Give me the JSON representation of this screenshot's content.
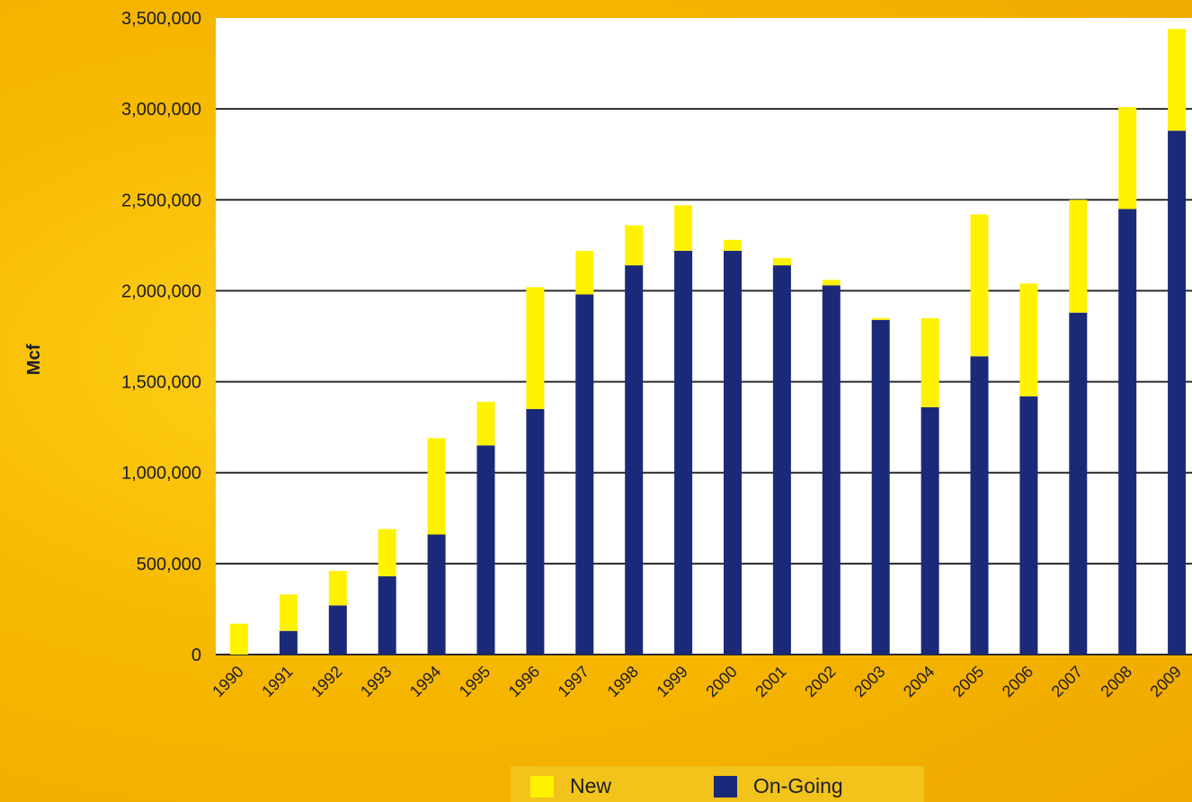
{
  "chart_data": {
    "type": "bar",
    "stacked": true,
    "ylabel": "Mcf",
    "xlabel": "",
    "ylim": [
      0,
      3500000
    ],
    "yticks": [
      0,
      500000,
      1000000,
      1500000,
      2000000,
      2500000,
      3000000,
      3500000
    ],
    "ytick_labels": [
      "0",
      "500,000",
      "1,000,000",
      "1,500,000",
      "2,000,000",
      "2,500,000",
      "3,000,000",
      "3,500,000"
    ],
    "categories": [
      "1990",
      "1991",
      "1992",
      "1993",
      "1994",
      "1995",
      "1996",
      "1997",
      "1998",
      "1999",
      "2000",
      "2001",
      "2002",
      "2003",
      "2004",
      "2005",
      "2006",
      "2007",
      "2008",
      "2009"
    ],
    "series": [
      {
        "name": "On-Going",
        "color": "#1b2a78",
        "values": [
          0,
          130000,
          270000,
          430000,
          660000,
          1150000,
          1350000,
          1980000,
          2140000,
          2220000,
          2220000,
          2140000,
          2030000,
          1840000,
          1360000,
          1640000,
          1420000,
          1880000,
          2450000,
          2880000
        ]
      },
      {
        "name": "New",
        "color": "#fff200",
        "values": [
          170000,
          200000,
          190000,
          260000,
          530000,
          240000,
          670000,
          240000,
          220000,
          250000,
          60000,
          40000,
          30000,
          10000,
          490000,
          780000,
          620000,
          620000,
          560000,
          560000
        ]
      }
    ],
    "legend_position": "bottom-center",
    "grid": true
  },
  "legend": {
    "items": [
      {
        "label": "New",
        "color": "#fff200"
      },
      {
        "label": "On-Going",
        "color": "#1b2a78"
      }
    ]
  }
}
